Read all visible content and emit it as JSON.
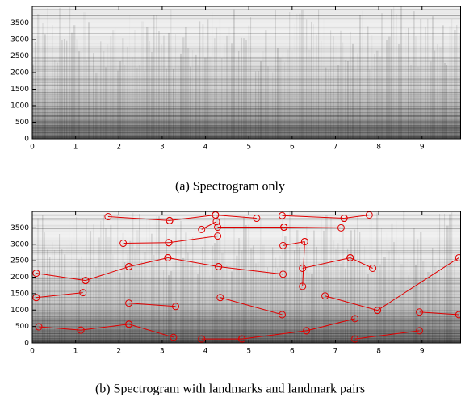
{
  "chart_data": [
    {
      "type": "spectrogram",
      "caption": "(a) Spectrogram only",
      "xlim": [
        0,
        9.89
      ],
      "ylim": [
        0,
        4000
      ],
      "xticks": [
        0,
        1,
        2,
        3,
        4,
        5,
        6,
        7,
        8,
        9
      ],
      "yticks": [
        0,
        500,
        1000,
        1500,
        2000,
        2500,
        3000,
        3500
      ]
    },
    {
      "type": "spectrogram",
      "caption": "(b) Spectrogram with landmarks and landmark pairs",
      "xlim": [
        0,
        9.89
      ],
      "ylim": [
        0,
        4000
      ],
      "xticks": [
        0,
        1,
        2,
        3,
        4,
        5,
        6,
        7,
        8,
        9
      ],
      "yticks": [
        0,
        500,
        1000,
        1500,
        2000,
        2500,
        3000,
        3500
      ],
      "color": "#e00000",
      "pairs": [
        {
          "x": [
            1.75,
            3.17
          ],
          "y": [
            3840,
            3720
          ]
        },
        {
          "x": [
            3.17,
            4.23
          ],
          "y": [
            3720,
            3890
          ]
        },
        {
          "x": [
            4.23,
            5.18
          ],
          "y": [
            3890,
            3790
          ]
        },
        {
          "x": [
            5.77,
            7.2
          ],
          "y": [
            3870,
            3790
          ]
        },
        {
          "x": [
            7.2,
            7.78
          ],
          "y": [
            3790,
            3890
          ]
        },
        {
          "x": [
            3.91,
            4.25
          ],
          "y": [
            3450,
            3690
          ]
        },
        {
          "x": [
            4.28,
            5.81
          ],
          "y": [
            3520,
            3520
          ]
        },
        {
          "x": [
            5.81,
            7.13
          ],
          "y": [
            3520,
            3500
          ]
        },
        {
          "x": [
            2.1,
            3.15
          ],
          "y": [
            3030,
            3050
          ]
        },
        {
          "x": [
            3.15,
            4.28
          ],
          "y": [
            3050,
            3250
          ]
        },
        {
          "x": [
            2.23,
            3.13
          ],
          "y": [
            2320,
            2590
          ]
        },
        {
          "x": [
            3.13,
            4.3
          ],
          "y": [
            2590,
            2320
          ]
        },
        {
          "x": [
            4.3,
            5.79
          ],
          "y": [
            2320,
            2090
          ]
        },
        {
          "x": [
            1.23,
            2.23
          ],
          "y": [
            1900,
            2320
          ]
        },
        {
          "x": [
            0.09,
            1.23
          ],
          "y": [
            2120,
            1900
          ]
        },
        {
          "x": [
            5.79,
            6.29
          ],
          "y": [
            2960,
            3080
          ]
        },
        {
          "x": [
            6.29,
            6.24
          ],
          "y": [
            3080,
            1720
          ]
        },
        {
          "x": [
            6.24,
            7.34
          ],
          "y": [
            2270,
            2590
          ]
        },
        {
          "x": [
            7.34,
            7.86
          ],
          "y": [
            2590,
            2270
          ]
        },
        {
          "x": [
            0.09,
            1.17
          ],
          "y": [
            1380,
            1530
          ]
        },
        {
          "x": [
            2.23,
            3.31
          ],
          "y": [
            1210,
            1110
          ]
        },
        {
          "x": [
            4.34,
            5.77
          ],
          "y": [
            1380,
            860
          ]
        },
        {
          "x": [
            6.76,
            7.97
          ],
          "y": [
            1430,
            990
          ]
        },
        {
          "x": [
            7.97,
            9.85
          ],
          "y": [
            990,
            2590
          ]
        },
        {
          "x": [
            8.94,
            9.85
          ],
          "y": [
            940,
            860
          ]
        },
        {
          "x": [
            0.15,
            1.12
          ],
          "y": [
            490,
            390
          ]
        },
        {
          "x": [
            1.12,
            2.23
          ],
          "y": [
            390,
            570
          ]
        },
        {
          "x": [
            2.23,
            3.26
          ],
          "y": [
            570,
            170
          ]
        },
        {
          "x": [
            4.84,
            6.33
          ],
          "y": [
            120,
            370
          ]
        },
        {
          "x": [
            6.33,
            7.45
          ],
          "y": [
            370,
            740
          ]
        },
        {
          "x": [
            7.45,
            8.94
          ],
          "y": [
            120,
            370
          ]
        },
        {
          "x": [
            3.91,
            4.84
          ],
          "y": [
            120,
            120
          ]
        }
      ]
    }
  ]
}
